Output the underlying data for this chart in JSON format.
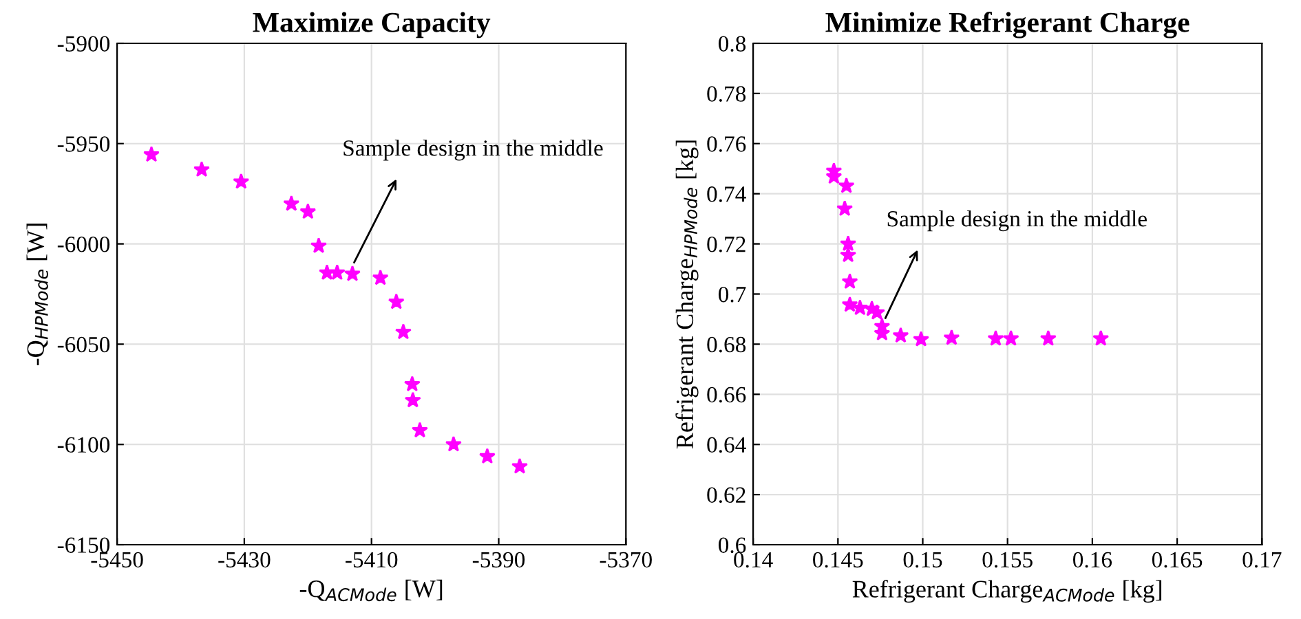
{
  "chart_data": [
    {
      "type": "scatter",
      "title": "Maximize Capacity",
      "xlabel": "-Q$_{ACMode}$ [W]",
      "ylabel": "-Q$_{HPMode}$ [W]",
      "x": [
        -5444.6,
        -5436.7,
        -5430.5,
        -5422.6,
        -5420,
        -5418.3,
        -5417,
        -5415.4,
        -5413,
        -5408.6,
        -5406.1,
        -5405,
        -5403.6,
        -5403.5,
        -5402.4,
        -5397.1,
        -5391.8,
        -5386.7
      ],
      "series": [
        {
          "color": "#ff00ff",
          "values": [
            -5955.5,
            -5963,
            -5969,
            -5980,
            -5984,
            -6001,
            -6014.4,
            -6014.4,
            -6015,
            -6017,
            -6029,
            -6044,
            -6070,
            -6078,
            -6093,
            -6100,
            -6106,
            -6111
          ]
        }
      ],
      "marker": "star",
      "grid": true,
      "legend": false,
      "xlim": [
        -5450,
        -5370
      ],
      "xticks": [
        -5450,
        -5430,
        -5410,
        -5390,
        -5370
      ],
      "ylim": [
        -6150,
        -5900
      ],
      "yticks": [
        -6150,
        -6100,
        -6050,
        -6000,
        -5950,
        -5900
      ],
      "annotations": [
        {
          "text": "Sample design in the middle",
          "x": -5413,
          "y": -6011
        }
      ]
    },
    {
      "type": "scatter",
      "title": "Minimize Refrigerant Charge",
      "xlabel": "Refrigerant Charge$_{ACMode}$ [kg]",
      "ylabel": "Refrigerant Charge$_{HPMode}$ [kg]",
      "x": [
        0.14476,
        0.14476,
        0.1455,
        0.1454,
        0.1456,
        0.1456,
        0.1457,
        0.1457,
        0.1463,
        0.147,
        0.1473,
        0.1476,
        0.1476,
        0.1487,
        0.1499,
        0.1517,
        0.1543,
        0.1552,
        0.1574,
        0.1605
      ],
      "series": [
        {
          "color": "#ff00ff",
          "values": [
            0.7491,
            0.7468,
            0.7431,
            0.734,
            0.72,
            0.7155,
            0.7049,
            0.6957,
            0.6944,
            0.694,
            0.6926,
            0.6871,
            0.6843,
            0.6834,
            0.6819,
            0.6825,
            0.6822,
            0.6822,
            0.6822,
            0.6822
          ]
        }
      ],
      "marker": "star",
      "grid": true,
      "legend": false,
      "xlim": [
        0.14,
        0.17
      ],
      "xticks": [
        0.14,
        0.145,
        0.15,
        0.155,
        0.16,
        0.165,
        0.17
      ],
      "ylim": [
        0.6,
        0.8
      ],
      "yticks": [
        0.6,
        0.62,
        0.64,
        0.66,
        0.68,
        0.7,
        0.72,
        0.74,
        0.76,
        0.78,
        0.8
      ],
      "annotations": [
        {
          "text": "Sample design in the middle",
          "x": 0.1477,
          "y": 0.689
        }
      ]
    }
  ]
}
